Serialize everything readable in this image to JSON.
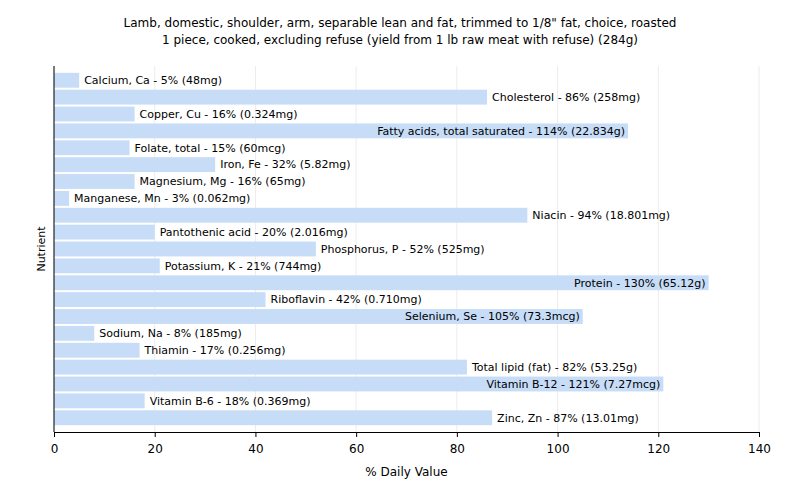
{
  "chart_data": {
    "type": "bar",
    "orientation": "horizontal",
    "title": "Lamb, domestic, shoulder, arm, separable lean and fat, trimmed to 1/8\" fat, choice, roasted",
    "subtitle": "1 piece, cooked, excluding refuse (yield from 1 lb raw meat with refuse) (284g)",
    "x_label": "% Daily Value",
    "y_label": "Nutrient",
    "categories": [
      "Calcium, Ca - 5% (48mg)",
      "Cholesterol - 86% (258mg)",
      "Copper, Cu - 16% (0.324mg)",
      "Fatty acids, total saturated - 114% (22.834g)",
      "Folate, total - 15% (60mcg)",
      "Iron, Fe - 32% (5.82mg)",
      "Magnesium, Mg - 16% (65mg)",
      "Manganese, Mn - 3% (0.062mg)",
      "Niacin - 94% (18.801mg)",
      "Pantothenic acid - 20% (2.016mg)",
      "Phosphorus, P - 52% (525mg)",
      "Potassium, K - 21% (744mg)",
      "Protein - 130% (65.12g)",
      "Riboflavin - 42% (0.710mg)",
      "Selenium, Se - 105% (73.3mcg)",
      "Sodium, Na - 8% (185mg)",
      "Thiamin - 17% (0.256mg)",
      "Total lipid (fat) - 82% (53.25g)",
      "Vitamin B-12 - 121% (7.27mcg)",
      "Vitamin B-6 - 18% (0.369mg)",
      "Zinc, Zn - 87% (13.01mg)"
    ],
    "values": [
      5,
      86,
      16,
      114,
      15,
      32,
      16,
      3,
      94,
      20,
      52,
      21,
      130,
      42,
      105,
      8,
      17,
      82,
      121,
      18,
      87
    ],
    "color": "#c6dcf7",
    "xlim": [
      0,
      140
    ],
    "xticks": [
      0,
      20,
      40,
      60,
      80,
      100,
      120,
      140
    ],
    "grid": true,
    "tick_labels": "x"
  }
}
